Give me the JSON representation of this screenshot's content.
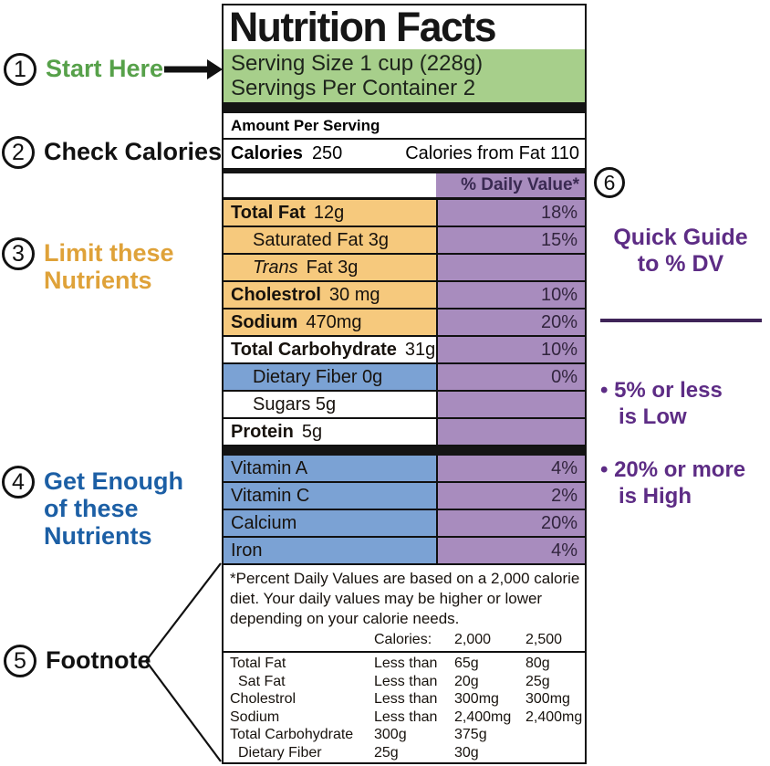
{
  "colors": {
    "green_band": "#a7cf8b",
    "orange_row": "#f6c97d",
    "blue_row": "#7ba2d4",
    "purple_cell": "#a88cbe",
    "purple_text": "#5d2c85",
    "divider_purple": "#3f2458",
    "ann_green": "#57a14a",
    "ann_gold": "#dfa239",
    "ann_blue": "#1c5fa5",
    "ann_black": "#111111"
  },
  "label": {
    "title": "Nutrition Facts",
    "serving_line1": "Serving Size 1 cup (228g)",
    "serving_line2": "Servings Per Container 2",
    "amount_per_serving": "Amount Per Serving",
    "calories_label": "Calories",
    "calories_value": "250",
    "calories_from_fat": "Calories from Fat 110",
    "dv_header": "% Daily Value*",
    "nutrient_rows": [
      {
        "name": "Total Fat",
        "style": "bold",
        "amount": "12g",
        "dv": "18%",
        "bg": "orange",
        "indent": false
      },
      {
        "name": "Saturated Fat 3g",
        "style": "regular",
        "amount": "",
        "dv": "15%",
        "bg": "orange",
        "indent": true
      },
      {
        "name": "Trans",
        "style": "italic",
        "amount": "Fat 3g",
        "dv": "",
        "bg": "orange",
        "indent": true
      },
      {
        "name": "Cholestrol",
        "style": "bold",
        "amount": "30 mg",
        "dv": "10%",
        "bg": "orange",
        "indent": false
      },
      {
        "name": "Sodium",
        "style": "bold",
        "amount": "470mg",
        "dv": "20%",
        "bg": "orange",
        "indent": false
      },
      {
        "name": "Total Carbohydrate",
        "style": "bold",
        "amount": "31g",
        "dv": "10%",
        "bg": "white",
        "indent": false
      },
      {
        "name": "Dietary Fiber 0g",
        "style": "regular",
        "amount": "",
        "dv": "0%",
        "bg": "blue",
        "indent": true
      },
      {
        "name": "Sugars 5g",
        "style": "regular",
        "amount": "",
        "dv": "",
        "bg": "white",
        "indent": true
      },
      {
        "name": "Protein",
        "style": "bold",
        "amount": "5g",
        "dv": "",
        "bg": "white",
        "indent": false
      }
    ],
    "vitamin_rows": [
      {
        "name": "Vitamin A",
        "dv": "4%"
      },
      {
        "name": "Vitamin C",
        "dv": "2%"
      },
      {
        "name": "Calcium",
        "dv": "20%"
      },
      {
        "name": "Iron",
        "dv": "4%"
      }
    ],
    "footnote": {
      "text_lines": [
        "*Percent Daily Values are based on a 2,000 calorie",
        "diet. Your daily values may be higher or lower",
        "depending on your calorie needs."
      ],
      "table_header": [
        "",
        "Calories:",
        "2,000",
        "2,500"
      ],
      "table_rows": [
        {
          "cells": [
            "Total Fat",
            "Less than",
            "65g",
            "80g"
          ],
          "indent": false
        },
        {
          "cells": [
            "Sat Fat",
            "Less than",
            "20g",
            "25g"
          ],
          "indent": true
        },
        {
          "cells": [
            "Cholestrol",
            "Less than",
            "300mg",
            "300mg"
          ],
          "indent": false
        },
        {
          "cells": [
            "Sodium",
            "Less than",
            "2,400mg",
            "2,400mg"
          ],
          "indent": false
        },
        {
          "cells": [
            "Total Carbohydrate",
            "300g",
            "375g",
            ""
          ],
          "indent": false
        },
        {
          "cells": [
            "Dietary Fiber",
            "25g",
            "30g",
            ""
          ],
          "indent": true
        }
      ]
    }
  },
  "annotations": {
    "left": [
      {
        "num": "1",
        "lines": [
          "Start Here"
        ],
        "color": "green"
      },
      {
        "num": "2",
        "lines": [
          "Check Calories"
        ],
        "color": "black"
      },
      {
        "num": "3",
        "lines": [
          "Limit these",
          "Nutrients"
        ],
        "color": "gold"
      },
      {
        "num": "4",
        "lines": [
          "Get Enough",
          "of these",
          "Nutrients"
        ],
        "color": "blue"
      },
      {
        "num": "5",
        "lines": [
          "Footnote"
        ],
        "color": "black"
      }
    ],
    "right": {
      "num": "6",
      "quick_guide_line1": "Quick Guide",
      "quick_guide_line2": "to % DV",
      "bullet1_line1": "• 5% or less",
      "bullet1_line2": "is Low",
      "bullet2_line1": "• 20% or more",
      "bullet2_line2": "is High"
    }
  }
}
